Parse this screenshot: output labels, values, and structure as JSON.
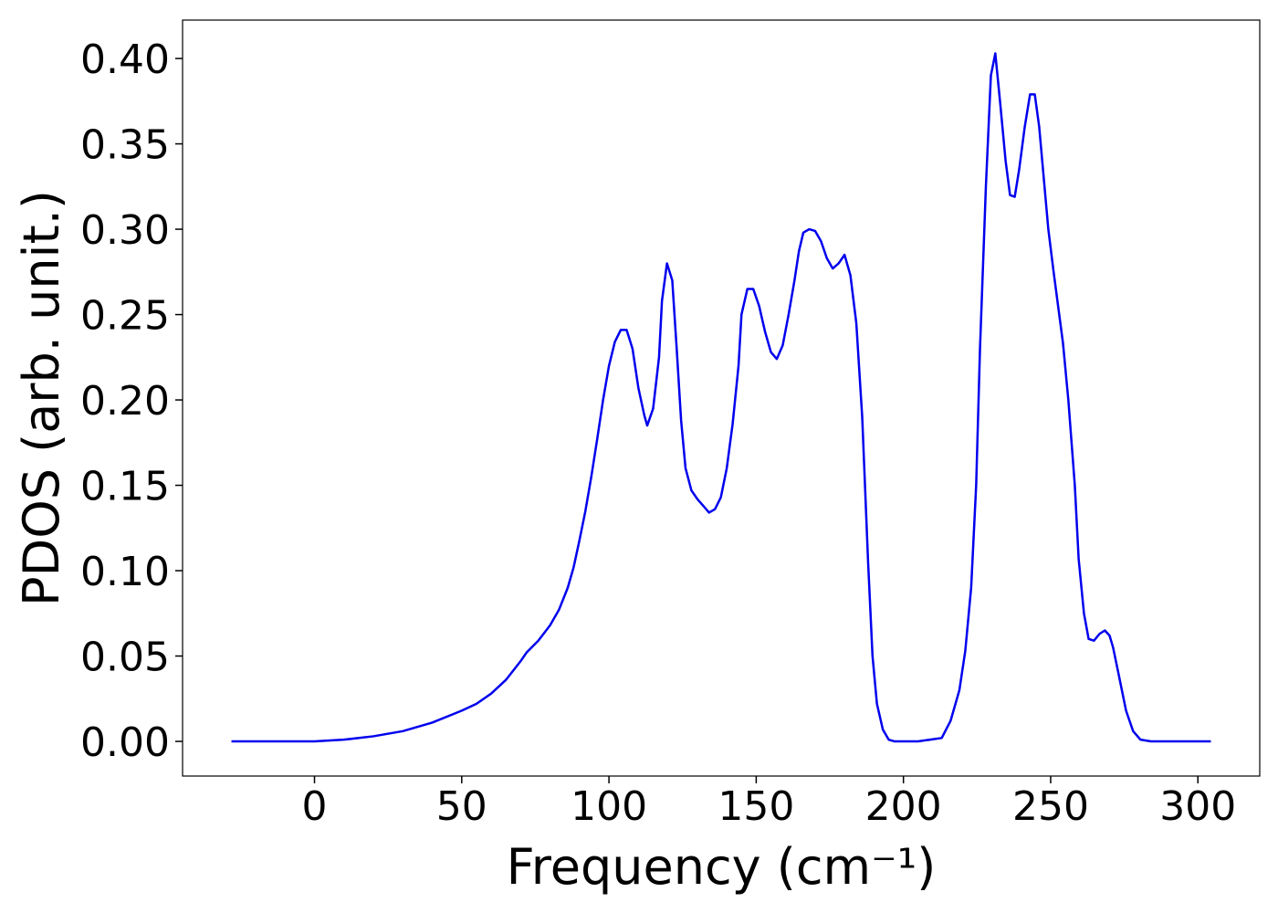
{
  "chart_data": {
    "type": "line",
    "x_label": "Frequency (cm⁻¹)",
    "y_label": "PDOS (arb. unit.)",
    "xlim": [
      -44.8,
      321.0
    ],
    "ylim": [
      -0.0203,
      0.4225
    ],
    "xticks": [
      0,
      50,
      100,
      150,
      200,
      250,
      300
    ],
    "yticks": [
      {
        "value": 0,
        "label": "0.00"
      },
      {
        "value": 0.05,
        "label": "0.05"
      },
      {
        "value": 0.1,
        "label": "0.10"
      },
      {
        "value": 0.15,
        "label": "0.15"
      },
      {
        "value": 0.2,
        "label": "0.20"
      },
      {
        "value": 0.25,
        "label": "0.25"
      },
      {
        "value": 0.3,
        "label": "0.30"
      },
      {
        "value": 0.35,
        "label": "0.35"
      },
      {
        "value": 0.4,
        "label": "0.40"
      }
    ],
    "x": [
      -28.2,
      -10,
      0,
      10,
      20,
      30,
      40,
      50,
      55,
      60,
      65,
      70,
      72,
      76,
      80,
      83,
      86,
      88,
      90,
      92,
      94,
      96,
      98,
      100,
      102,
      104,
      106,
      108,
      110,
      112,
      113,
      115,
      117,
      118,
      119.7,
      121.5,
      123,
      124.5,
      126,
      128,
      130,
      132,
      134,
      136,
      138,
      140,
      142,
      144,
      145,
      147,
      149,
      151,
      153,
      155,
      157,
      159,
      161,
      163,
      164.5,
      166,
      168,
      170,
      172,
      174,
      176,
      178,
      180,
      182,
      184,
      186,
      188,
      189.5,
      191,
      193,
      195,
      197,
      205,
      213,
      216,
      219,
      221,
      223,
      224.7,
      226,
      228,
      229.7,
      231.2,
      232.8,
      234.7,
      236.2,
      237.8,
      239.3,
      241.2,
      243,
      244.6,
      246.1,
      249.2,
      251,
      254.2,
      256,
      258.2,
      259.5,
      261.3,
      262.9,
      264.7,
      266.6,
      268.4,
      270,
      271.2,
      273,
      275.6,
      278,
      280.5,
      284,
      304.4
    ],
    "series": [
      {
        "color": "#0000ee",
        "values": [
          0,
          0,
          0,
          0.001,
          0.003,
          0.006,
          0.011,
          0.018,
          0.022,
          0.028,
          0.036,
          0.047,
          0.052,
          0.059,
          0.068,
          0.077,
          0.09,
          0.102,
          0.118,
          0.135,
          0.155,
          0.177,
          0.2,
          0.22,
          0.234,
          0.241,
          0.241,
          0.23,
          0.207,
          0.191,
          0.185,
          0.195,
          0.225,
          0.258,
          0.28,
          0.27,
          0.23,
          0.188,
          0.16,
          0.147,
          0.142,
          0.138,
          0.134,
          0.136,
          0.143,
          0.16,
          0.186,
          0.22,
          0.25,
          0.265,
          0.265,
          0.255,
          0.24,
          0.228,
          0.224,
          0.232,
          0.25,
          0.27,
          0.287,
          0.298,
          0.3,
          0.299,
          0.293,
          0.283,
          0.277,
          0.28,
          0.285,
          0.273,
          0.245,
          0.19,
          0.105,
          0.05,
          0.022,
          0.007,
          0.001,
          0,
          0,
          0.002,
          0.012,
          0.03,
          0.053,
          0.09,
          0.15,
          0.23,
          0.325,
          0.39,
          0.403,
          0.375,
          0.34,
          0.32,
          0.319,
          0.335,
          0.36,
          0.379,
          0.379,
          0.36,
          0.3,
          0.275,
          0.233,
          0.2,
          0.15,
          0.107,
          0.075,
          0.06,
          0.059,
          0.063,
          0.065,
          0.062,
          0.055,
          0.04,
          0.018,
          0.006,
          0.001,
          0,
          0
        ]
      }
    ]
  }
}
